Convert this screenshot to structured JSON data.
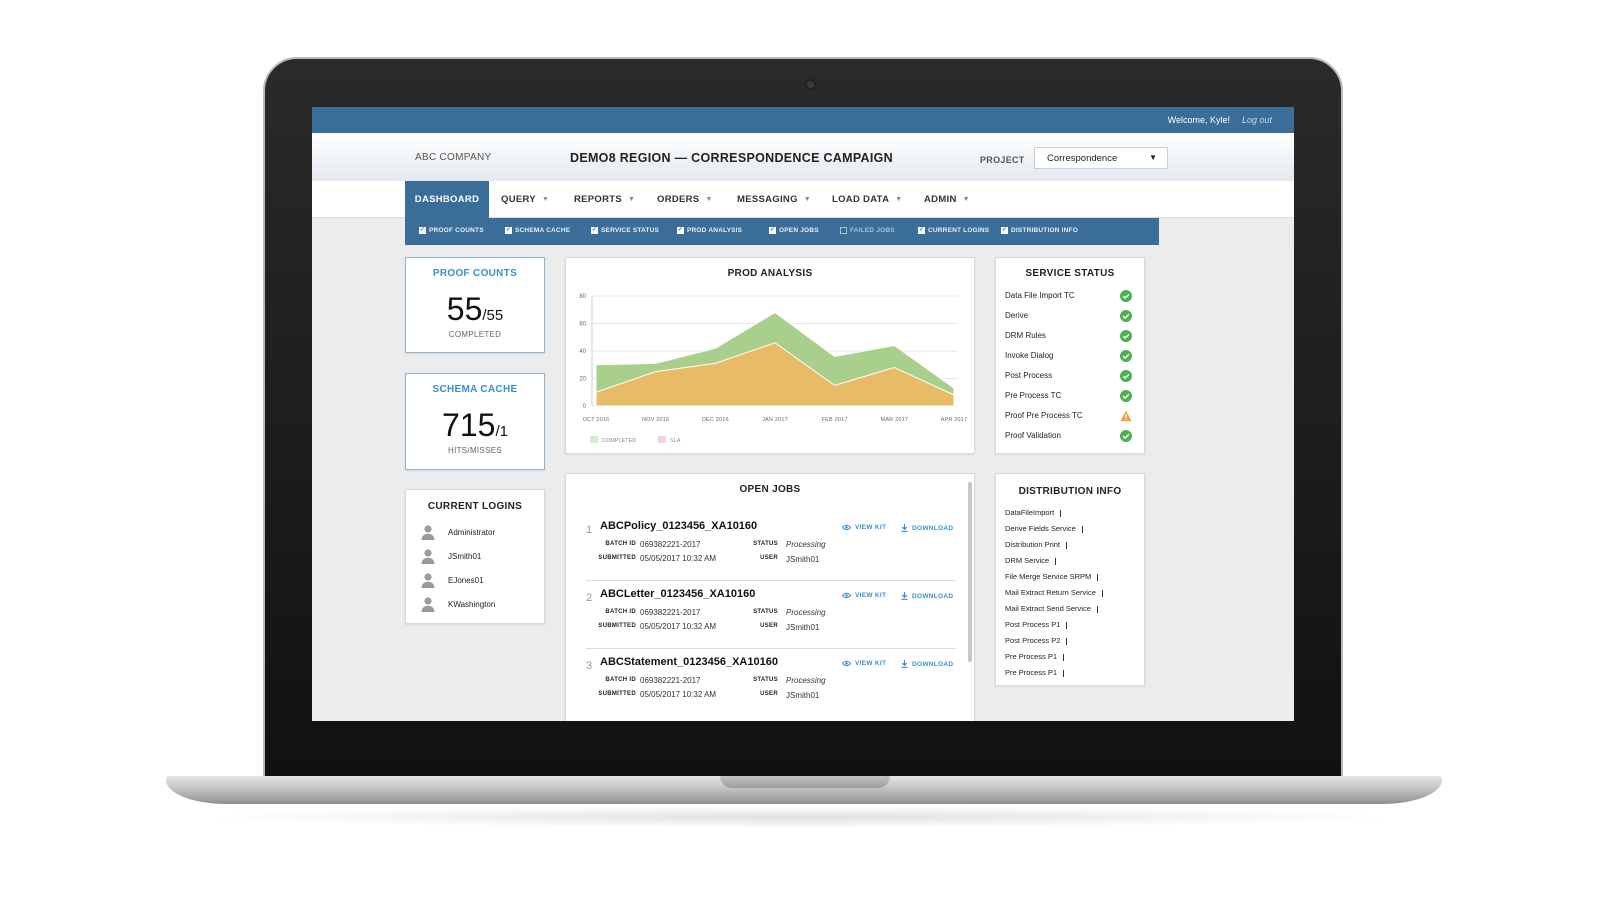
{
  "topbar": {
    "welcome": "Welcome, Kyle!",
    "logout": "Log out"
  },
  "header": {
    "company": "ABC COMPANY",
    "title": "DEMO8 REGION — CORRESPONDENCE CAMPAIGN",
    "project_label": "PROJECT",
    "project_value": "Correspondence"
  },
  "nav": [
    "DASHBOARD",
    "QUERY",
    "REPORTS",
    "ORDERS",
    "MESSAGING",
    "LOAD DATA",
    "ADMIN"
  ],
  "widgets": [
    {
      "label": "PROOF COUNTS",
      "checked": true
    },
    {
      "label": "SCHEMA CACHE",
      "checked": true
    },
    {
      "label": "SERVICE STATUS",
      "checked": true
    },
    {
      "label": "PROD ANALYSIS",
      "checked": true
    },
    {
      "label": "OPEN JOBS",
      "checked": true
    },
    {
      "label": "FAILED JOBS",
      "checked": false
    },
    {
      "label": "CURRENT LOGINS",
      "checked": true
    },
    {
      "label": "DISTRIBUTION INFO",
      "checked": true
    }
  ],
  "proof_counts": {
    "title": "PROOF COUNTS",
    "value": "55",
    "total": "/55",
    "sub": "COMPLETED"
  },
  "schema_cache": {
    "title": "SCHEMA CACHE",
    "value": "715",
    "total": "/1",
    "sub": "HITS/MISSES"
  },
  "current_logins": {
    "title": "CURRENT LOGINS",
    "users": [
      "Administrator",
      "JSmith01",
      "EJones01",
      "KWashington"
    ]
  },
  "service_status": {
    "title": "SERVICE STATUS",
    "items": [
      {
        "name": "Data File Import TC",
        "status": "ok"
      },
      {
        "name": "Derive",
        "status": "ok"
      },
      {
        "name": "DRM Rules",
        "status": "ok"
      },
      {
        "name": "Invoke Dialog",
        "status": "ok"
      },
      {
        "name": "Post Process",
        "status": "ok"
      },
      {
        "name": "Pre Process TC",
        "status": "ok"
      },
      {
        "name": "Proof Pre Process TC",
        "status": "warning"
      },
      {
        "name": "Proof Validation",
        "status": "ok"
      }
    ]
  },
  "distribution_info": {
    "title": "DISTRIBUTION INFO",
    "items": [
      "DataFileImport",
      "Derive Fields Service",
      "Distribution Print",
      "DRM Service",
      "File Merge Service SRPM",
      "Mail Extract Return Service",
      "Mail Extract Send Service",
      "Post Process P1",
      "Post Process P2",
      "Pre Process P1",
      "Pre Process P1"
    ]
  },
  "open_jobs": {
    "title": "OPEN JOBS",
    "view_label": "VIEW KIT",
    "download_label": "DOWNLOAD",
    "batch_label": "BATCH ID",
    "submitted_label": "SUBMITTED",
    "status_label": "STATUS",
    "user_label": "USER",
    "jobs": [
      {
        "num": "1",
        "name": "ABCPolicy_0123456_XA10160",
        "batch_id": "069382221-2017",
        "submitted": "05/05/2017 10:32 AM",
        "status": "Processing",
        "user": "JSmith01"
      },
      {
        "num": "2",
        "name": "ABCLetter_0123456_XA10160",
        "batch_id": "069382221-2017",
        "submitted": "05/05/2017 10:32 AM",
        "status": "Processing",
        "user": "JSmith01"
      },
      {
        "num": "3",
        "name": "ABCStatement_0123456_XA10160",
        "batch_id": "069382221-2017",
        "submitted": "05/05/2017 10:32 AM",
        "status": "Processing",
        "user": "JSmith01"
      }
    ]
  },
  "colors": {
    "accent": "#3a6e99",
    "link": "#3a8fc5",
    "completed": "#a8cf8c",
    "sla": "#e8bb66",
    "ok": "#4caf50",
    "warning": "#f0a040"
  },
  "chart_data": {
    "type": "area",
    "title": "PROD ANALYSIS",
    "categories": [
      "OCT 2016",
      "NOV 2016",
      "DEC 2016",
      "JAN 2017",
      "FEB 2017",
      "MAR 2017",
      "APR 2017"
    ],
    "series": [
      {
        "name": "COMPLETED",
        "values": [
          30,
          31,
          42,
          68,
          36,
          44,
          13
        ]
      },
      {
        "name": "SLA",
        "values": [
          10,
          25,
          31,
          46,
          15,
          28,
          8
        ]
      }
    ],
    "ylim": [
      0,
      80
    ],
    "yticks": [
      0,
      20,
      40,
      60,
      80
    ],
    "grid": true,
    "legend": "bottom-left"
  }
}
